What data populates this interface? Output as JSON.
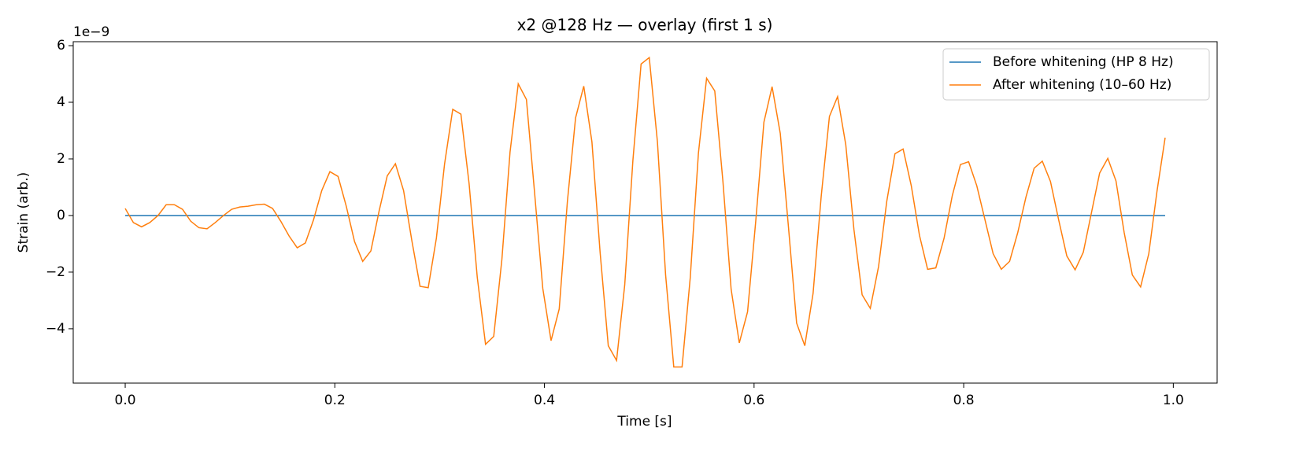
{
  "chart_data": {
    "type": "line",
    "title": "x2 @128 Hz — overlay (first 1 s)",
    "xlabel": "Time [s]",
    "ylabel": "Strain (arb.)",
    "y_offset_label": "1e−9",
    "x": [
      0,
      0.0078,
      0.0156,
      0.0234,
      0.0313,
      0.0391,
      0.0469,
      0.0547,
      0.0625,
      0.0703,
      0.0781,
      0.0859,
      0.0938,
      0.1016,
      0.1094,
      0.1172,
      0.125,
      0.1328,
      0.1406,
      0.1484,
      0.1563,
      0.1641,
      0.1719,
      0.1797,
      0.1875,
      0.1953,
      0.2031,
      0.2109,
      0.2188,
      0.2266,
      0.2344,
      0.2422,
      0.25,
      0.2578,
      0.2656,
      0.2734,
      0.2813,
      0.2891,
      0.2969,
      0.3047,
      0.3125,
      0.3203,
      0.3281,
      0.3359,
      0.3438,
      0.3516,
      0.3594,
      0.3672,
      0.375,
      0.3828,
      0.3906,
      0.3984,
      0.4063,
      0.4141,
      0.4219,
      0.4297,
      0.4375,
      0.4453,
      0.4531,
      0.4609,
      0.4688,
      0.4766,
      0.4844,
      0.4922,
      0.5,
      0.5078,
      0.5156,
      0.5234,
      0.5313,
      0.5391,
      0.5469,
      0.5547,
      0.5625,
      0.5703,
      0.5781,
      0.5859,
      0.5938,
      0.6016,
      0.6094,
      0.6172,
      0.625,
      0.6328,
      0.6406,
      0.6484,
      0.6563,
      0.6641,
      0.6719,
      0.6797,
      0.6875,
      0.6953,
      0.7031,
      0.7109,
      0.7188,
      0.7266,
      0.7344,
      0.7422,
      0.75,
      0.7578,
      0.7656,
      0.7734,
      0.7813,
      0.7891,
      0.7969,
      0.8047,
      0.8125,
      0.8203,
      0.8281,
      0.8359,
      0.8438,
      0.8516,
      0.8594,
      0.8672,
      0.875,
      0.8828,
      0.8906,
      0.8984,
      0.9063,
      0.9141,
      0.9219,
      0.9297,
      0.9375,
      0.9453,
      0.9531,
      0.9609,
      0.9688,
      0.9766,
      0.9844,
      0.9922
    ],
    "series": [
      {
        "name": "Before whitening (HP 8 Hz)",
        "color": "#1f77b4",
        "values": [
          0,
          0,
          0,
          0,
          0,
          0,
          0,
          0,
          0,
          0,
          0,
          0,
          0,
          0,
          0,
          0,
          0,
          0,
          0,
          0,
          0,
          0,
          0,
          0,
          0,
          0,
          0,
          0,
          0,
          0,
          0,
          0,
          0,
          0,
          0,
          0,
          0,
          0,
          0,
          0,
          0,
          0,
          0,
          0,
          0,
          0,
          0,
          0,
          0,
          0,
          0,
          0,
          0,
          0,
          0,
          0,
          0,
          0,
          0,
          0,
          0,
          0,
          0,
          0,
          0,
          0,
          0,
          0,
          0,
          0,
          0,
          0,
          0,
          0,
          0,
          0,
          0,
          0,
          0,
          0,
          0,
          0,
          0,
          0,
          0,
          0,
          0,
          0,
          0,
          0,
          0,
          0,
          0,
          0,
          0,
          0,
          0,
          0,
          0,
          0,
          0,
          0,
          0,
          0,
          0,
          0,
          0,
          0,
          0,
          0,
          0,
          0,
          0,
          0,
          0,
          0,
          0,
          0,
          0,
          0,
          0,
          0,
          0,
          0,
          0,
          0,
          0,
          0
        ]
      },
      {
        "name": "After whitening (10–60 Hz)",
        "color": "#ff7f0e",
        "values": [
          0.25,
          -0.25,
          -0.4,
          -0.25,
          0,
          0.38,
          0.38,
          0.22,
          -0.2,
          -0.43,
          -0.47,
          -0.25,
          0,
          0.22,
          0.3,
          0.33,
          0.38,
          0.4,
          0.25,
          -0.2,
          -0.72,
          -1.14,
          -0.97,
          -0.15,
          0.88,
          1.55,
          1.38,
          0.33,
          -0.92,
          -1.62,
          -1.25,
          0.15,
          1.4,
          1.83,
          0.88,
          -0.87,
          -2.5,
          -2.55,
          -0.8,
          1.82,
          3.75,
          3.58,
          1.13,
          -2.18,
          -4.55,
          -4.27,
          -1.55,
          2.25,
          4.65,
          4.1,
          0.8,
          -2.57,
          -4.42,
          -3.3,
          0.5,
          3.45,
          4.57,
          2.6,
          -1.3,
          -4.6,
          -5.12,
          -2.45,
          1.95,
          5.35,
          5.58,
          2.6,
          -2.1,
          -5.35,
          -5.35,
          -2.2,
          2.2,
          4.85,
          4.4,
          1.2,
          -2.6,
          -4.5,
          -3.4,
          -0.2,
          3.3,
          4.55,
          2.9,
          -0.4,
          -3.8,
          -4.6,
          -2.75,
          0.7,
          3.5,
          4.2,
          2.5,
          -0.5,
          -2.8,
          -3.28,
          -1.8,
          0.5,
          2.18,
          2.35,
          1.05,
          -0.7,
          -1.9,
          -1.85,
          -0.8,
          0.7,
          1.8,
          1.9,
          1.05,
          -0.15,
          -1.35,
          -1.9,
          -1.62,
          -0.6,
          0.65,
          1.67,
          1.92,
          1.2,
          -0.15,
          -1.43,
          -1.92,
          -1.3,
          0.1,
          1.5,
          2.02,
          1.22,
          -0.6,
          -2.1,
          -2.52,
          -1.35,
          0.85,
          2.75
        ]
      }
    ],
    "xlim": [
      -0.0496,
      1.0418
    ],
    "ylim": [
      -5.92,
      6.14
    ],
    "xticks": [
      {
        "value": 0,
        "label": "0.0"
      },
      0.2,
      0.4,
      0.6,
      0.8,
      {
        "value": 1,
        "label": "1.0"
      }
    ],
    "yticks": [
      {
        "value": -4,
        "label": "−4"
      },
      {
        "value": -2,
        "label": "−2"
      },
      0,
      2,
      4,
      6
    ],
    "legend": "upper right",
    "grid": false
  }
}
